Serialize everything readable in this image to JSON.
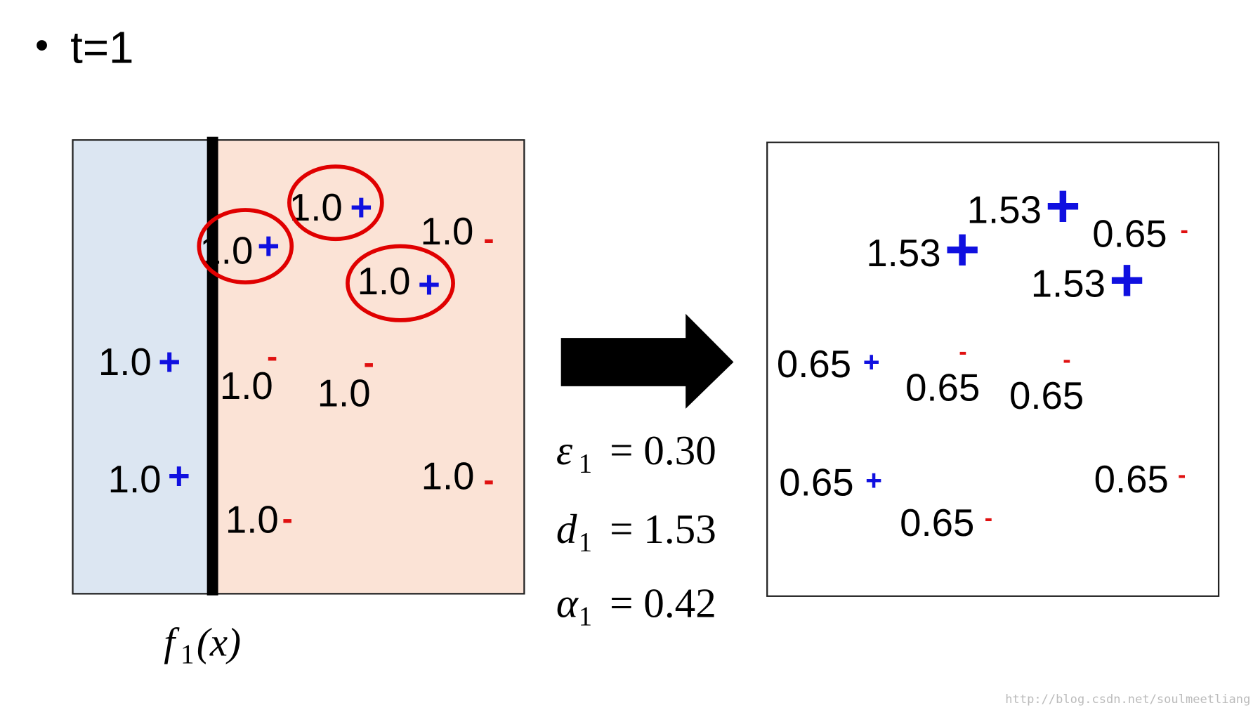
{
  "bullet": "•",
  "heading": "t=1",
  "left_panel": {
    "points": [
      {
        "label": "1.0",
        "sign": "+",
        "circled": true
      },
      {
        "label": "1.0",
        "sign": "+",
        "circled": true
      },
      {
        "label": "1.0",
        "sign": "-",
        "circled": false
      },
      {
        "label": "1.0",
        "sign": "+",
        "circled": true
      },
      {
        "label": "1.0",
        "sign": "+",
        "circled": false
      },
      {
        "label": "1.0",
        "sign": "-",
        "circled": false
      },
      {
        "label": "1.0",
        "sign": "-",
        "circled": false
      },
      {
        "label": "1.0",
        "sign": "+",
        "circled": false
      },
      {
        "label": "1.0",
        "sign": "-",
        "circled": false
      },
      {
        "label": "1.0",
        "sign": "-",
        "circled": false
      }
    ],
    "classifier": {
      "name": "f",
      "subscript": "1",
      "argument": "(x)"
    }
  },
  "equations": [
    {
      "symbol": "ε",
      "subscript": "1",
      "text": "= 0.30"
    },
    {
      "symbol": "d",
      "subscript": "1",
      "text": "= 1.53"
    },
    {
      "symbol": "α",
      "subscript": "1",
      "text": "= 0.42"
    }
  ],
  "right_panel": {
    "points": [
      {
        "label": "1.53",
        "sign": "+"
      },
      {
        "label": "1.53",
        "sign": "+"
      },
      {
        "label": "0.65",
        "sign": "-"
      },
      {
        "label": "1.53",
        "sign": "+"
      },
      {
        "label": "0.65",
        "sign": "+"
      },
      {
        "label": "0.65",
        "sign": "-"
      },
      {
        "label": "0.65",
        "sign": "-"
      },
      {
        "label": "0.65",
        "sign": "+"
      },
      {
        "label": "0.65",
        "sign": "-"
      },
      {
        "label": "0.65",
        "sign": "-"
      }
    ]
  },
  "watermark": "http://blog.csdn.net/soulmeetliang"
}
